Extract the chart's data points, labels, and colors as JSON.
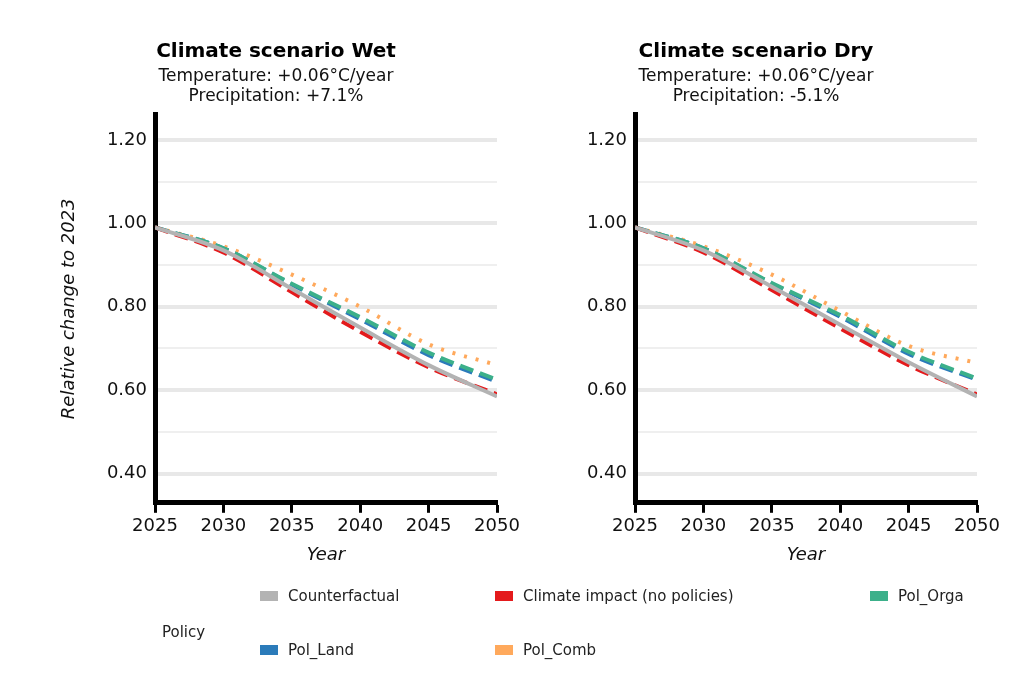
{
  "chart_data": [
    {
      "type": "line",
      "title": "Climate scenario Wet",
      "subtitle": "Temperature: +0.06°C/year\nPrecipitation: +7.1%",
      "xlabel": "Year",
      "ylabel": "Relative change to 2023",
      "x": [
        2025,
        2030,
        2035,
        2040,
        2045,
        2050
      ],
      "xlim": [
        2025,
        2050
      ],
      "xticks": [
        2025,
        2030,
        2035,
        2040,
        2045,
        2050
      ],
      "ylim": [
        0.33,
        1.26
      ],
      "yticks": [
        {
          "value": 0.4,
          "label": "0.40"
        },
        {
          "value": 0.5,
          "label": null
        },
        {
          "value": 0.6,
          "label": "0.60"
        },
        {
          "value": 0.7,
          "label": null
        },
        {
          "value": 0.8,
          "label": "0.80"
        },
        {
          "value": 0.9,
          "label": null
        },
        {
          "value": 1.0,
          "label": "1.00"
        },
        {
          "value": 1.1,
          "label": null
        },
        {
          "value": 1.2,
          "label": "1.20"
        }
      ],
      "grid": "y",
      "legend": "bottom",
      "legend_title": "Policy",
      "marker": "none",
      "series": [
        {
          "name": "Counterfactual",
          "color": "#b3b3b3",
          "line_style": "solid",
          "values": [
            0.99,
            0.935,
            0.843,
            0.75,
            0.66,
            0.585
          ]
        },
        {
          "name": "Climate impact (no policies)",
          "color": "#e41a1c",
          "line_style": "dashed",
          "values": [
            0.99,
            0.93,
            0.835,
            0.74,
            0.655,
            0.59
          ]
        },
        {
          "name": "Pol_Orga",
          "color": "#3cb08a",
          "line_style": "dashed",
          "values": [
            0.99,
            0.94,
            0.855,
            0.775,
            0.69,
            0.625
          ]
        },
        {
          "name": "Pol_Land",
          "color": "#2b7bba",
          "line_style": "dashed",
          "values": [
            0.99,
            0.94,
            0.853,
            0.77,
            0.684,
            0.62
          ]
        },
        {
          "name": "Pol_Comb",
          "color": "#ffa95c",
          "line_style": "dotted",
          "values": [
            0.99,
            0.945,
            0.877,
            0.8,
            0.71,
            0.66
          ]
        }
      ]
    },
    {
      "type": "line",
      "title": "Climate scenario Dry",
      "subtitle": "Temperature: +0.06°C/year\nPrecipitation: -5.1%",
      "xlabel": "Year",
      "x": [
        2025,
        2030,
        2035,
        2040,
        2045,
        2050
      ],
      "xlim": [
        2025,
        2050
      ],
      "xticks": [
        2025,
        2030,
        2035,
        2040,
        2045,
        2050
      ],
      "ylim": [
        0.33,
        1.26
      ],
      "yticks": [
        {
          "value": 0.4,
          "label": "0.40"
        },
        {
          "value": 0.5,
          "label": null
        },
        {
          "value": 0.6,
          "label": "0.60"
        },
        {
          "value": 0.7,
          "label": null
        },
        {
          "value": 0.8,
          "label": "0.80"
        },
        {
          "value": 0.9,
          "label": null
        },
        {
          "value": 1.0,
          "label": "1.00"
        },
        {
          "value": 1.1,
          "label": null
        },
        {
          "value": 1.2,
          "label": "1.20"
        }
      ],
      "grid": "y",
      "marker": "none",
      "series": [
        {
          "color": "#b3b3b3",
          "line_style": "solid",
          "values": [
            0.99,
            0.935,
            0.848,
            0.757,
            0.667,
            0.585
          ]
        },
        {
          "color": "#e41a1c",
          "line_style": "dashed",
          "values": [
            0.99,
            0.93,
            0.84,
            0.748,
            0.66,
            0.59
          ]
        },
        {
          "color": "#3cb08a",
          "line_style": "dashed",
          "values": [
            0.99,
            0.94,
            0.857,
            0.78,
            0.692,
            0.628
          ]
        },
        {
          "color": "#2b7bba",
          "line_style": "dashed",
          "values": [
            0.99,
            0.94,
            0.855,
            0.776,
            0.687,
            0.625
          ]
        },
        {
          "color": "#ffa95c",
          "line_style": "dotted",
          "values": [
            0.99,
            0.945,
            0.877,
            0.79,
            0.706,
            0.665
          ]
        }
      ]
    }
  ]
}
